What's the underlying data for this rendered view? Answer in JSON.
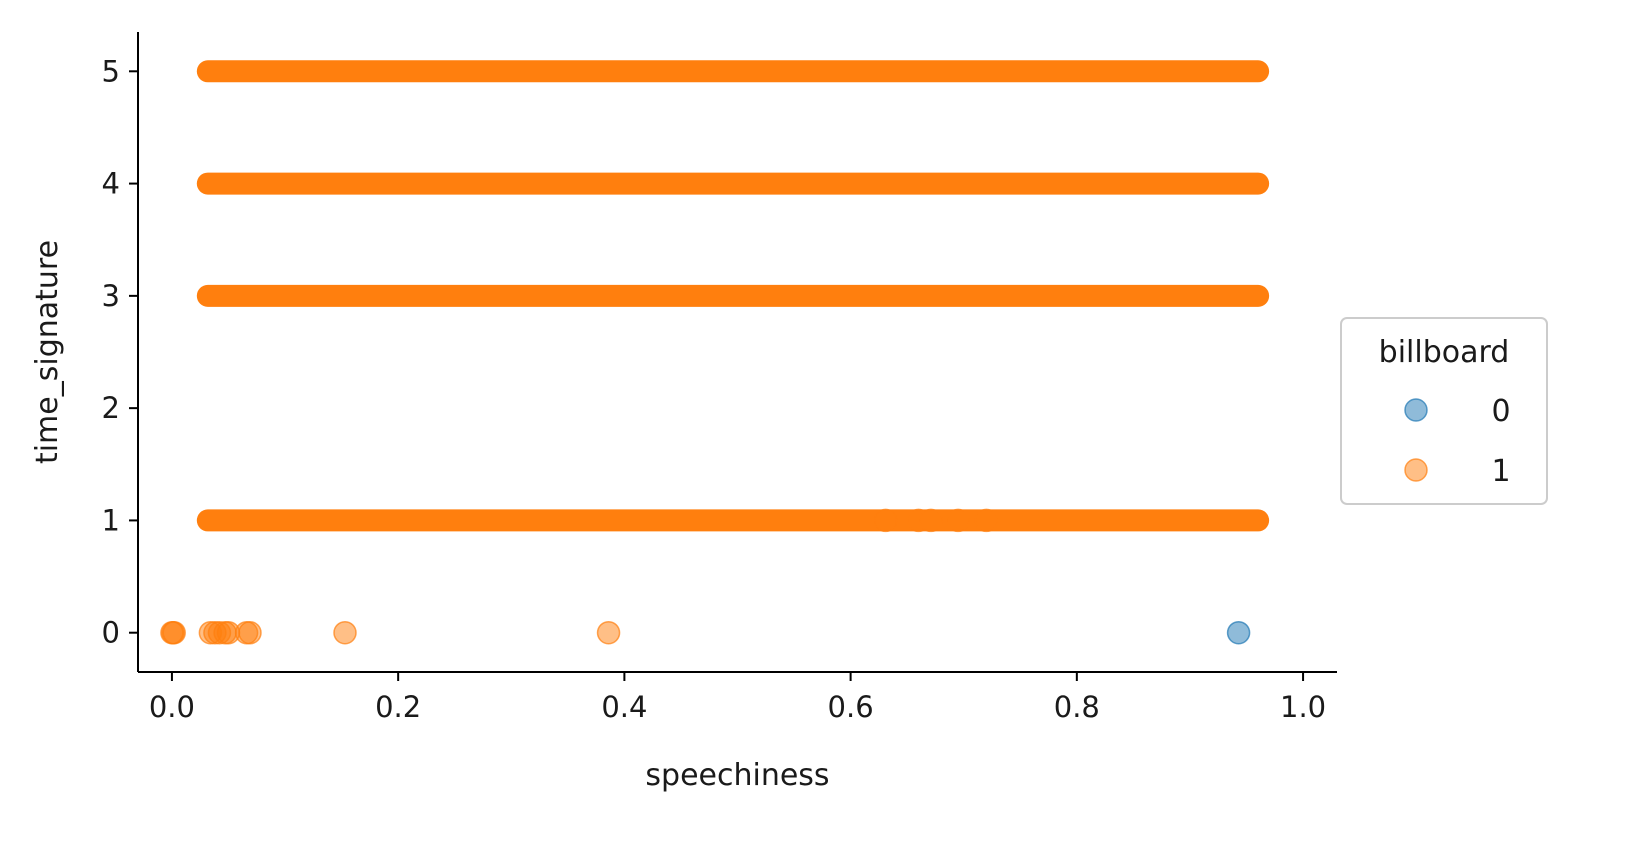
{
  "chart_data": {
    "type": "scatter",
    "title": "",
    "xlabel": "speechiness",
    "ylabel": "time_signature",
    "xlim": [
      -0.03,
      1.03
    ],
    "ylim": [
      -0.35,
      5.35
    ],
    "x_ticks": [
      0.0,
      0.2,
      0.4,
      0.6,
      0.8,
      1.0
    ],
    "x_tick_labels": [
      "0.0",
      "0.2",
      "0.4",
      "0.6",
      "0.8",
      "1.0"
    ],
    "y_ticks": [
      0,
      1,
      2,
      3,
      4,
      5
    ],
    "y_tick_labels": [
      "0",
      "1",
      "2",
      "3",
      "4",
      "5"
    ],
    "grid": false,
    "legend": {
      "title": "billboard",
      "placement": "center-right outside",
      "entries": [
        {
          "label": "0",
          "color": "#1f77b4"
        },
        {
          "label": "1",
          "color": "#ff7f0e"
        }
      ]
    },
    "series": [
      {
        "name": "0",
        "color": "#1f77b4",
        "points": [
          [
            0.943,
            0
          ]
        ]
      },
      {
        "name": "1",
        "color": "#ff7f0e",
        "bands": [
          {
            "y": 5,
            "x_min": 0.022,
            "x_max": 0.97
          },
          {
            "y": 4,
            "x_min": 0.022,
            "x_max": 0.97
          },
          {
            "y": 3,
            "x_min": 0.022,
            "x_max": 0.97
          },
          {
            "y": 1,
            "x_min": 0.022,
            "x_max": 0.97
          }
        ],
        "points": [
          [
            0.0,
            0
          ],
          [
            0.001,
            0
          ],
          [
            0.002,
            0
          ],
          [
            0.034,
            0
          ],
          [
            0.038,
            0
          ],
          [
            0.042,
            0
          ],
          [
            0.047,
            0
          ],
          [
            0.05,
            0
          ],
          [
            0.066,
            0
          ],
          [
            0.069,
            0
          ],
          [
            0.153,
            0
          ],
          [
            0.386,
            0
          ],
          [
            0.631,
            1
          ],
          [
            0.66,
            1
          ],
          [
            0.671,
            1
          ],
          [
            0.695,
            1
          ],
          [
            0.72,
            1
          ]
        ]
      }
    ]
  }
}
